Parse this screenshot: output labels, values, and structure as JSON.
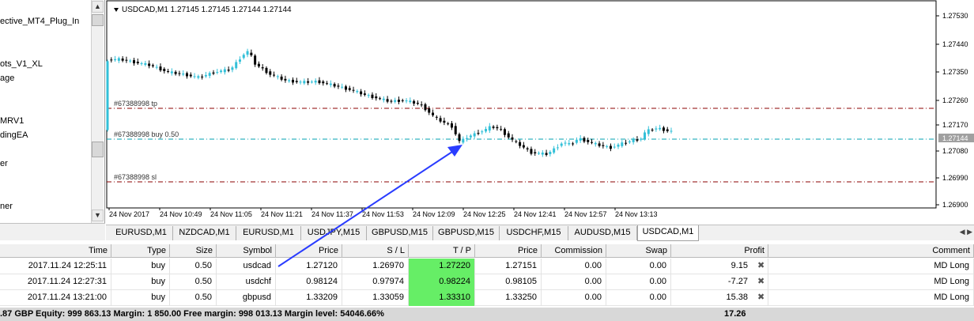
{
  "navigator": {
    "items": [
      "ective_MT4_Plug_In",
      "ots_V1_XL",
      "age",
      "MRV1",
      "dingEA",
      "er",
      "ner"
    ]
  },
  "chart": {
    "header": "USDCAD,M1  1.27145 1.27145 1.27144 1.27144",
    "price_labels": [
      "1.27530",
      "1.27440",
      "1.27350",
      "1.27260",
      "1.27170",
      "1.27080",
      "1.26990",
      "1.26900"
    ],
    "current_price": "1.27144",
    "time_labels": [
      "24 Nov 2017",
      "24 Nov 10:49",
      "24 Nov 11:05",
      "24 Nov 11:21",
      "24 Nov 11:37",
      "24 Nov 11:53",
      "24 Nov 12:09",
      "24 Nov 12:25",
      "24 Nov 12:41",
      "24 Nov 12:57",
      "24 Nov 13:13"
    ],
    "lines": {
      "tp_label": "#67388998 tp",
      "buy_label": "#67388998 buy 0.50",
      "sl_label": "#67388998 sl"
    },
    "colors": {
      "bull": "#33c0d8",
      "bear": "#000000",
      "tp_line": "#8b0000",
      "buy_line": "#00a0b0",
      "sl_line": "#8b0000",
      "arrow": "#2a3cff"
    }
  },
  "chart_tabs": [
    "EURUSD,M1",
    "NZDCAD,M1",
    "EURUSD,M1",
    "USDJPY,M15",
    "GBPUSD,M15",
    "GBPUSD,M15",
    "USDCHF,M15",
    "AUDUSD,M15",
    "USDCAD,M1"
  ],
  "terminal": {
    "headers": [
      "Time",
      "Type",
      "Size",
      "Symbol",
      "Price",
      "S / L",
      "T / P",
      "Price",
      "Commission",
      "Swap",
      "Profit",
      "Comment"
    ],
    "rows": [
      [
        "2017.11.24 12:25:11",
        "buy",
        "0.50",
        "usdcad",
        "1.27120",
        "1.26970",
        "1.27220",
        "1.27151",
        "0.00",
        "0.00",
        "9.15",
        "MD Long"
      ],
      [
        "2017.11.24 12:27:31",
        "buy",
        "0.50",
        "usdchf",
        "0.98124",
        "0.97974",
        "0.98224",
        "0.98105",
        "0.00",
        "0.00",
        "-7.27",
        "MD Long"
      ],
      [
        "2017.11.24 13:21:00",
        "buy",
        "0.50",
        "gbpusd",
        "1.33209",
        "1.33059",
        "1.33310",
        "1.33250",
        "0.00",
        "0.00",
        "15.38",
        "MD Long"
      ]
    ],
    "close_symbol": "✖",
    "summary_text": ".87 GBP  Equity: 999 863.13  Margin: 1 850.00  Free margin: 998 013.13  Margin level: 54046.66%",
    "summary_profit": "17.26"
  }
}
